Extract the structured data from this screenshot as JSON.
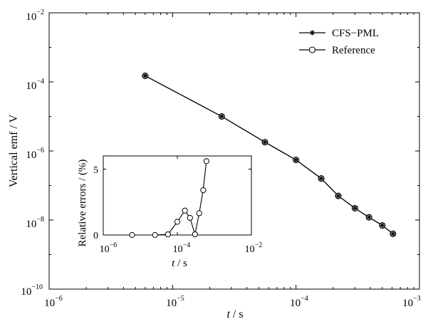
{
  "chart_data": [
    {
      "type": "line",
      "xscale": "log",
      "yscale": "log",
      "xlim": [
        1e-06,
        0.001
      ],
      "ylim": [
        1e-10,
        0.01
      ],
      "xlabel_italic": "t",
      "xlabel_rest": " / s",
      "ylabel": "Vertical emf / V",
      "x_tick_base": "10",
      "x_tick_exps": [
        "−6",
        "−5",
        "−4",
        "−3"
      ],
      "y_tick_base": "10",
      "y_tick_exps": [
        "−2",
        "−4",
        "−6",
        "−8",
        "−10"
      ],
      "legend_position": "top-right",
      "series": [
        {
          "name": "CFS−PML",
          "marker": "asterisk",
          "x": [
            6e-06,
            2.5e-05,
            5.6e-05,
            0.0001,
            0.00016,
            0.00022,
            0.0003,
            0.00039,
            0.0005,
            0.00061
          ],
          "y": [
            0.00015,
            1e-05,
            1.8e-06,
            5.5e-07,
            1.6e-07,
            5e-08,
            2.2e-08,
            1.2e-08,
            7e-09,
            4e-09
          ]
        },
        {
          "name": "Reference",
          "marker": "circle",
          "x": [
            6e-06,
            2.5e-05,
            5.6e-05,
            0.0001,
            0.00016,
            0.00022,
            0.0003,
            0.00039,
            0.0005,
            0.00061
          ],
          "y": [
            0.00015,
            1e-05,
            1.8e-06,
            5.5e-07,
            1.6e-07,
            5e-08,
            2.2e-08,
            1.2e-08,
            7e-09,
            4e-09
          ]
        }
      ]
    },
    {
      "type": "line",
      "role": "inset",
      "xscale": "log",
      "xlim": [
        1e-06,
        0.01
      ],
      "ylim": [
        0,
        6
      ],
      "xlabel_italic": "t",
      "xlabel_rest": " / s",
      "ylabel": "Relative errors / (%)",
      "x_tick_base": "10",
      "x_tick_exps": [
        "−6",
        "−4",
        "−2"
      ],
      "y_ticks": [
        "0",
        "5"
      ],
      "series": [
        {
          "name": "Relative errors",
          "marker": "circle",
          "x": [
            6e-06,
            2.5e-05,
            5.6e-05,
            0.0001,
            0.00016,
            0.00022,
            0.0003,
            0.00039,
            0.0005,
            0.00061
          ],
          "y": [
            0,
            0,
            0.05,
            1.0,
            1.85,
            1.3,
            0.05,
            1.65,
            3.4,
            5.6
          ]
        }
      ]
    }
  ]
}
